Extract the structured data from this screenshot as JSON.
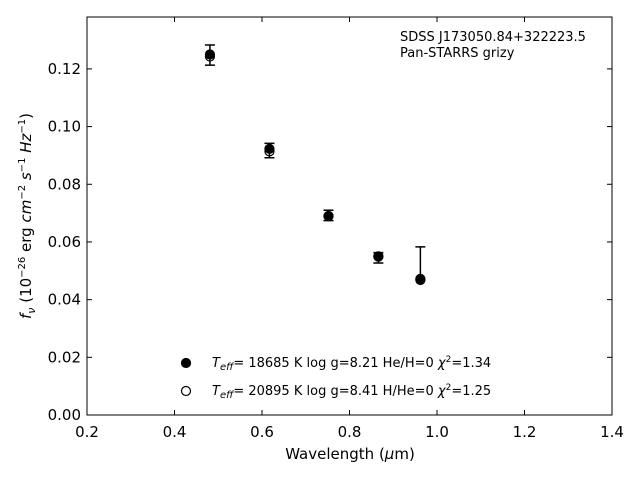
{
  "chart_data": {
    "type": "scatter",
    "title": "",
    "xlabel": "Wavelength (μm)",
    "ylabel": "f_ν (10^−26 erg cm^−2 s^−1 Hz^−1)",
    "xlim": [
      0.2,
      1.4
    ],
    "ylim": [
      0.0,
      0.138
    ],
    "x_ticks": [
      "0.2",
      "0.4",
      "0.6",
      "0.8",
      "1.0",
      "1.2",
      "1.4"
    ],
    "y_ticks": [
      "0.00",
      "0.02",
      "0.04",
      "0.06",
      "0.08",
      "0.10",
      "0.12"
    ],
    "grid": false,
    "annotations": [
      "SDSS J173050.84+322223.5",
      "Pan-STARRS grizy"
    ],
    "observed": {
      "x": [
        0.481,
        0.617,
        0.752,
        0.866,
        0.962
      ],
      "y": [
        0.1248,
        0.0917,
        0.0692,
        0.0545,
        0.047
      ],
      "yerr_low": [
        0.0035,
        0.0025,
        0.0018,
        0.0018,
        0.0
      ],
      "yerr_high": [
        0.0035,
        0.0025,
        0.0018,
        0.0018,
        0.0113
      ]
    },
    "series": [
      {
        "name": "Teff= 18685 K  log g=8.21  He/H=0  χ2=1.34",
        "marker": "filled",
        "x": [
          0.481,
          0.617,
          0.752,
          0.866,
          0.962
        ],
        "y": [
          0.125,
          0.0923,
          0.069,
          0.0549,
          0.0468
        ]
      },
      {
        "name": "Teff= 20895 K  log g=8.41  H/He=0  χ2=1.25",
        "marker": "open",
        "x": [
          0.481,
          0.617,
          0.752,
          0.866,
          0.962
        ],
        "y": [
          0.1243,
          0.0914,
          0.0689,
          0.055,
          0.0472
        ]
      }
    ],
    "legend": [
      {
        "marker": "filled",
        "teff": "18685",
        "rest": "  log g=8.21  He/H=0  ",
        "chi": "=1.34"
      },
      {
        "marker": "open",
        "teff": "20895",
        "rest": "  log g=8.41  H/He=0  ",
        "chi": "=1.25"
      }
    ],
    "legend_placement": "lower-center",
    "colors": {
      "marker": "#000000",
      "axis": "#000000",
      "background": "#ffffff"
    }
  }
}
